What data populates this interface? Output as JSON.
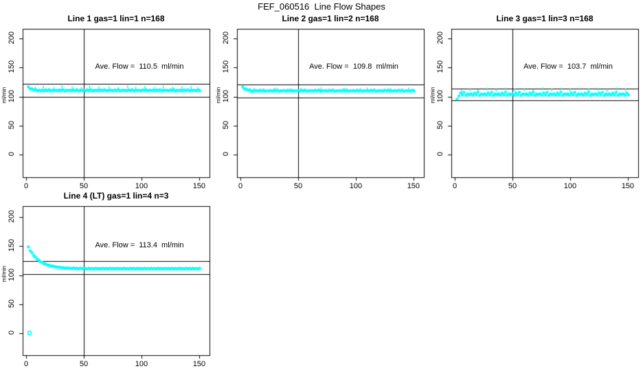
{
  "chart_data": {
    "type": "scatter",
    "title": "FEF_060516  Line Flow Shapes",
    "point_color": "#00FFFF",
    "line_color": "#000000",
    "axes": {
      "x_ticks": [
        "0",
        "50",
        "100",
        "150"
      ],
      "y_ticks": [
        "0",
        "50",
        "100",
        "150",
        "200"
      ],
      "xlim": [
        -3,
        159
      ],
      "ylim": [
        -39,
        217
      ],
      "vline_x": 50,
      "grid": false
    },
    "panels": [
      {
        "title": "Line 1 gas=1 lin=1 n=168",
        "annotation": "Ave. Flow =  110.5  ml/min",
        "ave_flow": 110.5,
        "n": 168,
        "ylabel": "ml/min",
        "hlines": [
          121.6,
          99.5
        ],
        "x_start": 2,
        "x_step": 1.5,
        "y": [
          116.5,
          113,
          113.5,
          111.2,
          112.6,
          109.8,
          110.9,
          110.3,
          111,
          109.8,
          111.6,
          110.1,
          112,
          109.5,
          110.9,
          110.3,
          111,
          109.8,
          111.6,
          110.1,
          112,
          109.5,
          110.9,
          110.3,
          111,
          109.8,
          111.6,
          110.1,
          112,
          109.5,
          110.9,
          110.3,
          111,
          109.8,
          111.6,
          110.1,
          112,
          109.5,
          110.9,
          110.3,
          111,
          109.8,
          111.6,
          110.1,
          112,
          109.5,
          110.9,
          110.3,
          111,
          109.8,
          111.6,
          110.1,
          112,
          109.5,
          110.9,
          110.3,
          111,
          109.8,
          111.6,
          110.1,
          112,
          109.5,
          110.9,
          110.3,
          111,
          109.8,
          111.6,
          110.1,
          112,
          109.5,
          110.9,
          110.3,
          111,
          109.8,
          111.6,
          110.1,
          112,
          109.5,
          110.9,
          110.3,
          111,
          109.8,
          111.6,
          110.1,
          112,
          109.5,
          110.9,
          110.3,
          111,
          109.8,
          111.6,
          110.1,
          112,
          109.5,
          110.9,
          110.3,
          111,
          109.8,
          111.6,
          110.1
        ],
        "dashes": [
          [
            8,
            114.5
          ],
          [
            15,
            116
          ],
          [
            24,
            114
          ],
          [
            31,
            117
          ],
          [
            40,
            115
          ],
          [
            48,
            114.2
          ],
          [
            55,
            116.5
          ],
          [
            63,
            114.8
          ],
          [
            72,
            115.5
          ],
          [
            80,
            114
          ],
          [
            88,
            116.8
          ],
          [
            95,
            114.5
          ],
          [
            103,
            115.8
          ],
          [
            111,
            114.2
          ],
          [
            119,
            116.2
          ],
          [
            127,
            114.6
          ],
          [
            135,
            115.4
          ],
          [
            143,
            116
          ],
          [
            149,
            114.3
          ]
        ],
        "open_points": []
      },
      {
        "title": "Line 2 gas=1 lin=2 n=168",
        "annotation": "Ave. Flow =  109.8  ml/min",
        "ave_flow": 109.8,
        "n": 168,
        "ylabel": "ml/min",
        "hlines": [
          120.8,
          98.8
        ],
        "x_start": 2,
        "x_step": 1.5,
        "y": [
          116.3,
          112.8,
          113.1,
          110.8,
          111.9,
          108.9,
          110.2,
          109.6,
          110.3,
          109.2,
          110.9,
          109.5,
          111.2,
          108.9,
          110.2,
          109.6,
          110.3,
          109.2,
          110.9,
          109.5,
          111.2,
          108.9,
          110.2,
          109.6,
          110.3,
          109.2,
          110.9,
          109.5,
          111.2,
          108.9,
          110.2,
          109.6,
          110.3,
          109.2,
          110.9,
          109.5,
          111.2,
          108.9,
          110.2,
          109.6,
          110.3,
          109.2,
          110.9,
          109.5,
          111.2,
          108.9,
          110.2,
          109.6,
          110.3,
          109.2,
          110.9,
          109.5,
          111.2,
          108.9,
          110.2,
          109.6,
          110.3,
          109.2,
          110.9,
          109.5,
          111.2,
          108.9,
          110.2,
          109.6,
          110.3,
          109.2,
          110.9,
          109.5,
          111.2,
          108.9,
          110.2,
          109.6,
          110.3,
          109.2,
          110.9,
          109.5,
          111.2,
          108.9,
          110.2,
          109.6,
          110.3,
          109.2,
          110.9,
          109.5,
          111.2,
          108.9,
          110.2,
          109.6,
          110.3,
          109.2,
          110.9,
          109.5,
          111.2,
          108.9,
          110.2,
          109.6,
          110.3,
          109.2,
          110.9,
          109.5
        ],
        "dashes": [
          [
            12,
            112.5
          ],
          [
            30,
            113
          ],
          [
            52,
            112.2
          ],
          [
            70,
            113.4
          ],
          [
            90,
            112.8
          ],
          [
            110,
            113.1
          ],
          [
            130,
            112.4
          ],
          [
            146,
            113
          ]
        ],
        "open_points": []
      },
      {
        "title": "Line 3 gas=1 lin=3 n=168",
        "annotation": "Ave. Flow =  103.7  ml/min",
        "ave_flow": 103.7,
        "n": 168,
        "ylabel": "ml/min",
        "hlines": [
          114.1,
          93.3
        ],
        "x_start": 2,
        "x_step": 1.5,
        "y": [
          95.5,
          101,
          106.1,
          103,
          107.3,
          101.8,
          104.5,
          103.2,
          104.8,
          102.2,
          106.1,
          103,
          107.3,
          101.8,
          104.5,
          103.2,
          104.8,
          102.2,
          106.1,
          103,
          107.3,
          101.8,
          104.5,
          103.2,
          104.8,
          102.2,
          106.1,
          103,
          107.3,
          101.8,
          104.5,
          103.2,
          104.8,
          102.2,
          106.1,
          103,
          107.3,
          101.8,
          104.5,
          103.2,
          104.8,
          102.2,
          106.1,
          103,
          107.3,
          101.8,
          104.5,
          103.2,
          104.8,
          102.2,
          106.1,
          103,
          107.3,
          101.8,
          104.5,
          103.2,
          104.8,
          102.2,
          106.1,
          103,
          107.3,
          101.8,
          104.5,
          103.2,
          104.8,
          102.2,
          106.1,
          103,
          107.3,
          101.8,
          104.5,
          103.2,
          104.8,
          102.2,
          106.1,
          103,
          107.3,
          101.8,
          104.5,
          103.2,
          104.8,
          102.2,
          106.1,
          103,
          107.3,
          101.8,
          104.5,
          103.2,
          104.8,
          102.2,
          106.1,
          103,
          107.3,
          101.8,
          104.5,
          103.2,
          104.8,
          102.2,
          106.1,
          103
        ],
        "dashes": [
          [
            6,
            109.5
          ],
          [
            13,
            111.8
          ],
          [
            20,
            110.2
          ],
          [
            28,
            112.6
          ],
          [
            36,
            110.8
          ],
          [
            44,
            113
          ],
          [
            52,
            111.2
          ],
          [
            60,
            112.2
          ],
          [
            68,
            110.5
          ],
          [
            76,
            113.4
          ],
          [
            84,
            111.6
          ],
          [
            92,
            112.8
          ],
          [
            100,
            110.9
          ],
          [
            108,
            113.1
          ],
          [
            116,
            111.4
          ],
          [
            124,
            112.5
          ],
          [
            132,
            110.7
          ],
          [
            140,
            113.2
          ],
          [
            148,
            111.8
          ]
        ],
        "open_points": []
      },
      {
        "title": "Line 4 (LT) gas=1 lin=4 n=3",
        "annotation": "Ave. Flow =  113.4  ml/min",
        "ave_flow": 113.4,
        "n": 3,
        "ylabel": "ml/min",
        "hlines": [
          124.7,
          102.1
        ],
        "x_start": 2,
        "x_step": 1.5,
        "y": [
          148.5,
          142.2,
          138.8,
          134,
          131.2,
          127.4,
          126.1,
          123.2,
          122,
          119.5,
          119.4,
          117.5,
          117.1,
          115.3,
          115.9,
          114.5,
          114.5,
          113.1,
          114,
          112.8,
          113.1,
          111.9,
          112.9,
          112,
          112.3,
          111.3,
          112.4,
          111.5,
          111.9,
          111,
          112.1,
          111.3,
          111.7,
          111.5,
          110.6,
          111.8,
          111,
          111.5,
          110.6,
          111.8,
          111,
          111.5,
          110.6,
          111.8,
          111,
          111.5,
          110.6,
          111.8,
          111,
          111.5,
          110.6,
          111.8,
          111,
          111.5,
          110.6,
          111.8,
          111,
          111.5,
          110.6,
          111.8,
          111,
          111.5,
          110.6,
          111.8,
          111,
          111.5,
          110.6,
          111.8,
          111,
          111.5,
          110.6,
          111.8,
          111,
          111.5,
          110.6,
          111.8,
          111,
          111.5,
          110.6,
          111.8,
          111,
          111.5,
          110.6,
          111.8,
          111,
          111.5,
          110.6,
          111.8,
          111,
          111.5,
          110.6,
          111.8,
          111,
          111.5,
          110.6,
          111.8,
          111,
          111.5,
          110.6,
          111.8
        ],
        "dashes": [],
        "open_points": [
          [
            3,
            0.5
          ]
        ]
      }
    ]
  }
}
